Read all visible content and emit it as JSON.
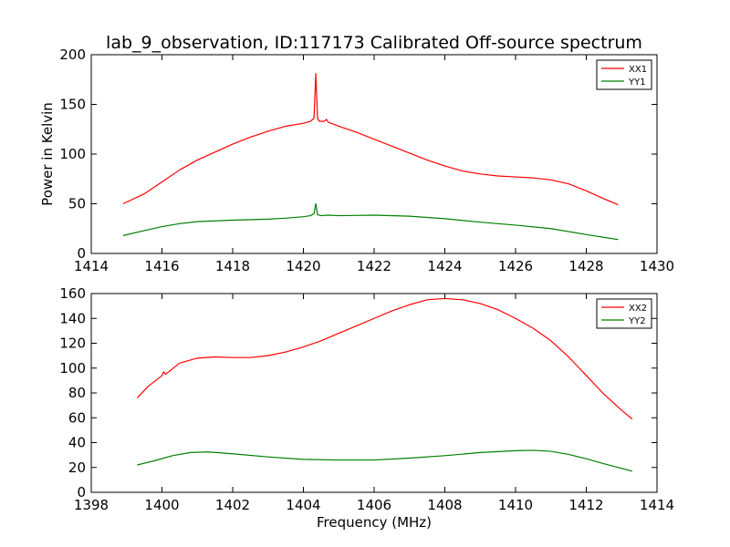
{
  "figure": {
    "title": "lab_9_observation, ID:117173 Calibrated Off-source spectrum"
  },
  "chart_data": [
    {
      "type": "line",
      "title": "lab_9_observation, ID:117173 Calibrated Off-source spectrum",
      "xlabel": "",
      "ylabel": "Power in Kelvin",
      "xlim": [
        1414,
        1430
      ],
      "ylim": [
        0,
        200
      ],
      "xticks": [
        1414,
        1416,
        1418,
        1420,
        1422,
        1424,
        1426,
        1428,
        1430
      ],
      "yticks": [
        0,
        50,
        100,
        150,
        200
      ],
      "legend_position": "top-right",
      "grid": false,
      "series": [
        {
          "name": "XX1",
          "color": "#ff0000",
          "x": [
            1414.9,
            1415.5,
            1416,
            1416.5,
            1417,
            1417.5,
            1418,
            1418.5,
            1419,
            1419.5,
            1420,
            1420.2,
            1420.3,
            1420.35,
            1420.4,
            1420.45,
            1420.5,
            1420.6,
            1420.65,
            1420.7,
            1421,
            1421.5,
            1422,
            1422.5,
            1423,
            1423.5,
            1424,
            1424.5,
            1425,
            1425.5,
            1426,
            1426.5,
            1427,
            1427.5,
            1428,
            1428.5,
            1428.9
          ],
          "y": [
            50,
            60,
            72,
            84,
            94,
            102,
            110,
            117,
            123,
            128,
            131,
            133,
            136,
            181,
            136,
            133,
            133,
            133,
            135,
            132,
            128,
            122,
            115,
            108,
            101,
            94,
            88,
            83,
            80,
            78,
            77,
            76,
            74,
            70,
            63,
            55,
            49
          ]
        },
        {
          "name": "YY1",
          "color": "#008000",
          "x": [
            1414.9,
            1415.5,
            1416,
            1416.5,
            1417,
            1418,
            1419,
            1419.5,
            1420,
            1420.2,
            1420.3,
            1420.35,
            1420.4,
            1420.5,
            1420.7,
            1421,
            1422,
            1423,
            1424,
            1425,
            1426,
            1427,
            1428,
            1428.9
          ],
          "y": [
            18,
            23,
            27,
            30,
            32,
            33.5,
            34.5,
            35.5,
            37,
            38,
            40,
            50,
            39,
            38,
            38.5,
            38,
            38.5,
            37.5,
            35,
            31.5,
            28.5,
            25,
            19,
            14
          ]
        }
      ]
    },
    {
      "type": "line",
      "title": "",
      "xlabel": "Frequency (MHz)",
      "ylabel": "",
      "xlim": [
        1398,
        1414
      ],
      "ylim": [
        0,
        160
      ],
      "xticks": [
        1398,
        1400,
        1402,
        1404,
        1406,
        1408,
        1410,
        1412,
        1414
      ],
      "yticks": [
        0,
        20,
        40,
        60,
        80,
        100,
        120,
        140,
        160
      ],
      "legend_position": "top-right",
      "grid": false,
      "series": [
        {
          "name": "XX2",
          "color": "#ff0000",
          "x": [
            1399.3,
            1399.6,
            1400,
            1400.05,
            1400.1,
            1400.5,
            1401,
            1401.5,
            1402,
            1402.5,
            1403,
            1403.5,
            1404,
            1404.5,
            1405,
            1405.5,
            1406,
            1406.5,
            1407,
            1407.5,
            1408,
            1408.5,
            1409,
            1409.5,
            1410,
            1410.5,
            1411,
            1411.5,
            1412,
            1412.5,
            1413,
            1413.3
          ],
          "y": [
            76,
            85,
            94,
            97,
            95,
            104,
            108,
            109,
            108.5,
            108.5,
            110,
            113,
            117,
            122,
            128,
            134,
            140,
            146,
            151,
            155,
            156,
            155,
            152,
            147,
            140,
            132,
            122,
            109,
            94,
            79,
            66,
            59
          ]
        },
        {
          "name": "YY2",
          "color": "#008000",
          "x": [
            1399.3,
            1399.8,
            1400.3,
            1400.8,
            1401.3,
            1402,
            1403,
            1404,
            1405,
            1406,
            1407,
            1408,
            1409,
            1410,
            1410.5,
            1411,
            1411.5,
            1412,
            1412.5,
            1413.3
          ],
          "y": [
            22,
            25.5,
            29.5,
            32,
            32.5,
            31,
            28.5,
            26.5,
            26,
            26,
            27.5,
            29.5,
            32,
            33.5,
            33.8,
            33,
            30.5,
            27,
            23,
            17
          ]
        }
      ]
    }
  ]
}
